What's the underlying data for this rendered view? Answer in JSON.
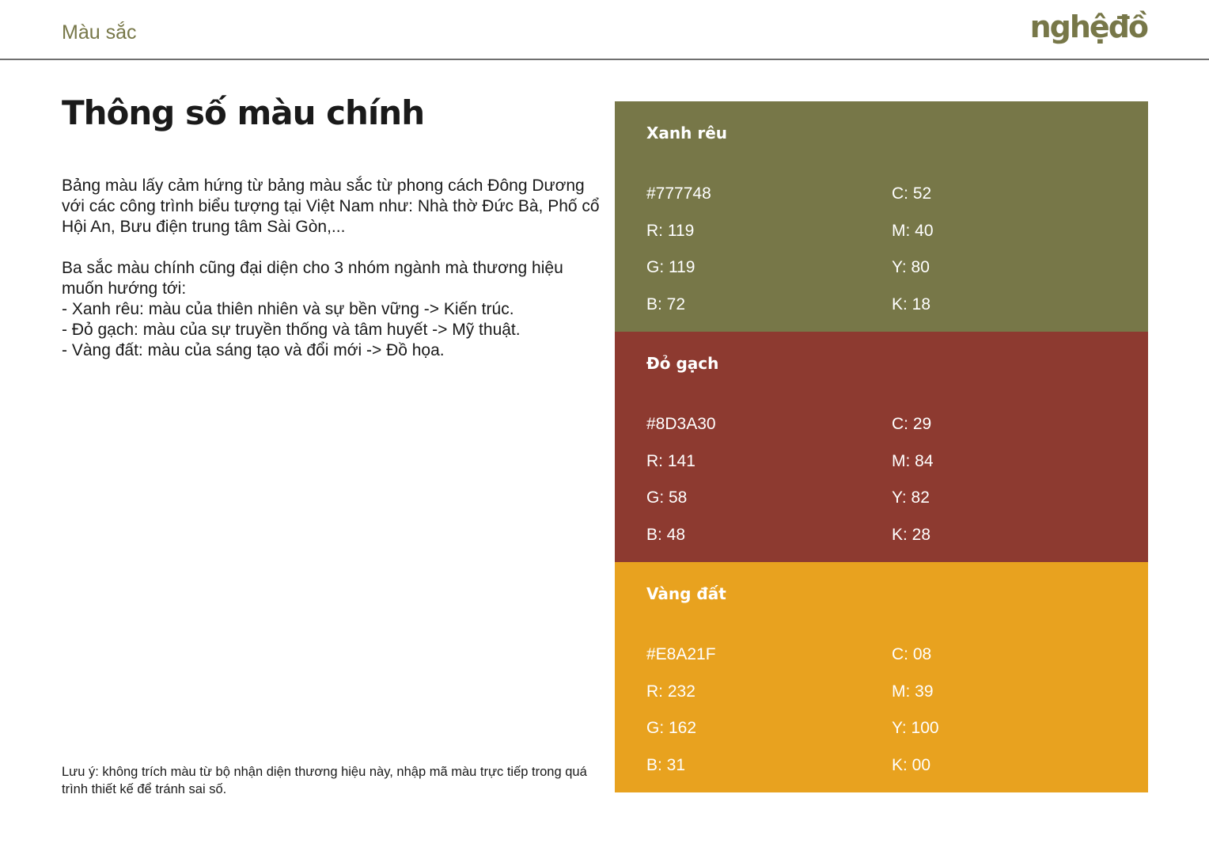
{
  "header": {
    "section": "Màu sắc",
    "logo": "nghệđồ"
  },
  "title": "Thông số màu chính",
  "intro": {
    "p1": "Bảng màu lấy cảm hứng từ bảng màu sắc từ phong cách Đông Dương với các công trình biểu tượng tại Việt Nam như: Nhà thờ Đức Bà, Phố cổ Hội An, Bưu điện trung tâm Sài Gòn,...",
    "p2": "Ba sắc màu chính cũng đại diện cho 3 nhóm ngành mà thương hiệu muốn hướng tới:",
    "bullets": [
      "- Xanh rêu: màu của thiên nhiên và sự bền vững -> Kiến trúc.",
      "- Đỏ gạch: màu của sự truyền thống và tâm huyết -> Mỹ thuật.",
      "- Vàng đất: màu của sáng tạo và đổi mới -> Đồ họa."
    ]
  },
  "note": "Lưu ý: không trích màu từ bộ nhận diện thương hiệu này, nhập mã màu trực tiếp trong quá trình thiết kế để tránh sai số.",
  "colors": [
    {
      "name": "Xanh rêu",
      "swatch": "#777748",
      "hex": "#777748",
      "r": "R: 119",
      "g": "G: 119",
      "b": "B: 72",
      "c": "C: 52",
      "m": "M: 40",
      "y": "Y: 80",
      "k": "K: 18"
    },
    {
      "name": "Đỏ gạch",
      "swatch": "#8D3A30",
      "hex": "#8D3A30",
      "r": "R: 141",
      "g": "G: 58",
      "b": "B: 48",
      "c": "C: 29",
      "m": "M: 84",
      "y": "Y: 82",
      "k": "K: 28"
    },
    {
      "name": "Vàng đất",
      "swatch": "#E8A21F",
      "hex": "#E8A21F",
      "r": "R: 232",
      "g": "G: 162",
      "b": "B: 31",
      "c": "C: 08",
      "m": "M: 39",
      "y": "Y: 100",
      "k": "K: 00"
    }
  ]
}
